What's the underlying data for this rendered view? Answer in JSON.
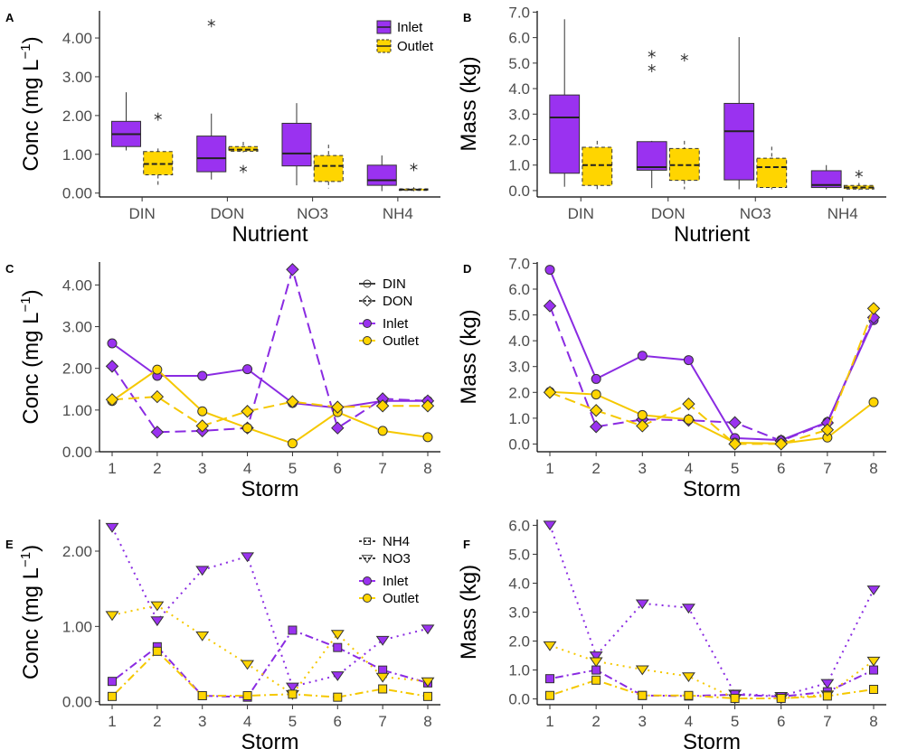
{
  "colors": {
    "inlet": "#9a32f0",
    "outlet": "#ffd500",
    "inlet_line": "#8a2be2",
    "outlet_line": "#f5c800"
  },
  "chart_data": [
    {
      "panel": "A",
      "type": "box",
      "xlabel": "Nutrient",
      "ylabel": "Conc (mg L",
      "ylabel_sup": "−1",
      "ylabel_close": ")",
      "categories": [
        "DIN",
        "DON",
        "NO3",
        "NH4"
      ],
      "yticks": [
        "0.00",
        "1.00",
        "2.00",
        "3.00",
        "4.00"
      ],
      "ylim": [
        -0.1,
        4.7
      ],
      "legend": {
        "position": "top-right",
        "entries": [
          "Inlet",
          "Outlet"
        ]
      },
      "series": [
        {
          "name": "Inlet",
          "boxes": [
            {
              "lo": 1.1,
              "q1": 1.2,
              "med": 1.52,
              "q3": 1.85,
              "hi": 2.6,
              "outliers": []
            },
            {
              "lo": 0.35,
              "q1": 0.55,
              "med": 0.9,
              "q3": 1.47,
              "hi": 2.05,
              "outliers": [
                4.38
              ]
            },
            {
              "lo": 0.2,
              "q1": 0.7,
              "med": 1.02,
              "q3": 1.8,
              "hi": 2.32,
              "outliers": []
            },
            {
              "lo": 0.05,
              "q1": 0.2,
              "med": 0.33,
              "q3": 0.72,
              "hi": 0.97,
              "outliers": []
            }
          ]
        },
        {
          "name": "Outlet",
          "boxes": [
            {
              "lo": 0.2,
              "q1": 0.47,
              "med": 0.75,
              "q3": 1.07,
              "hi": 1.15,
              "outliers": [
                1.97
              ]
            },
            {
              "lo": 1.05,
              "q1": 1.08,
              "med": 1.12,
              "q3": 1.2,
              "hi": 1.32,
              "outliers": [
                0.62
              ]
            },
            {
              "lo": 0.12,
              "q1": 0.3,
              "med": 0.7,
              "q3": 0.97,
              "hi": 1.25,
              "outliers": []
            },
            {
              "lo": 0.05,
              "q1": 0.07,
              "med": 0.09,
              "q3": 0.11,
              "hi": 0.15,
              "outliers": [
                0.67
              ]
            }
          ]
        }
      ]
    },
    {
      "panel": "B",
      "type": "box",
      "xlabel": "Nutrient",
      "ylabel": "Mass (kg)",
      "categories": [
        "DIN",
        "DON",
        "NO3",
        "NH4"
      ],
      "yticks": [
        "0.0",
        "1.0",
        "2.0",
        "3.0",
        "4.0",
        "5.0",
        "6.0",
        "7.0"
      ],
      "ylim": [
        -0.25,
        7.05
      ],
      "series": [
        {
          "name": "Inlet",
          "boxes": [
            {
              "lo": 0.15,
              "q1": 0.68,
              "med": 2.87,
              "q3": 3.75,
              "hi": 6.72,
              "outliers": []
            },
            {
              "lo": 0.1,
              "q1": 0.8,
              "med": 0.92,
              "q3": 1.92,
              "hi": 1.95,
              "outliers": [
                4.8,
                5.35
              ]
            },
            {
              "lo": 0.05,
              "q1": 0.42,
              "med": 2.33,
              "q3": 3.42,
              "hi": 6.02,
              "outliers": []
            },
            {
              "lo": 0.05,
              "q1": 0.12,
              "med": 0.22,
              "q3": 0.78,
              "hi": 1.0,
              "outliers": []
            }
          ]
        },
        {
          "name": "Outlet",
          "boxes": [
            {
              "lo": 0.05,
              "q1": 0.2,
              "med": 1.0,
              "q3": 1.7,
              "hi": 1.95,
              "outliers": []
            },
            {
              "lo": 0.05,
              "q1": 0.4,
              "med": 1.0,
              "q3": 1.65,
              "hi": 1.95,
              "outliers": [
                5.22
              ]
            },
            {
              "lo": 0.05,
              "q1": 0.12,
              "med": 0.92,
              "q3": 1.27,
              "hi": 1.72,
              "outliers": []
            },
            {
              "lo": 0.02,
              "q1": 0.06,
              "med": 0.12,
              "q3": 0.2,
              "hi": 0.3,
              "outliers": [
                0.65
              ]
            }
          ]
        }
      ]
    },
    {
      "panel": "C",
      "type": "line",
      "xlabel": "Storm",
      "ylabel": "Conc (mg L",
      "ylabel_sup": "−1",
      "ylabel_close": ")",
      "x": [
        1,
        2,
        3,
        4,
        5,
        6,
        7,
        8
      ],
      "yticks": [
        "0.00",
        "1.00",
        "2.00",
        "3.00",
        "4.00"
      ],
      "ylim": [
        0,
        4.55
      ],
      "legend": {
        "position": "top-right",
        "shapes": [
          "DIN",
          "DON"
        ],
        "colors": [
          "Inlet",
          "Outlet"
        ]
      },
      "series": [
        {
          "name": "DIN Inlet",
          "color": "inlet",
          "dash": "solid",
          "marker": "circle",
          "values": [
            2.6,
            1.82,
            1.82,
            1.98,
            1.17,
            1.05,
            1.22,
            1.22
          ]
        },
        {
          "name": "DON Inlet",
          "color": "inlet",
          "dash": "dashed",
          "marker": "diamond",
          "values": [
            2.05,
            0.47,
            0.5,
            0.57,
            4.37,
            0.57,
            1.27,
            1.22
          ]
        },
        {
          "name": "DIN Outlet",
          "color": "outlet",
          "dash": "solid",
          "marker": "circle",
          "values": [
            1.22,
            1.97,
            0.97,
            0.57,
            0.2,
            0.95,
            0.5,
            0.35
          ]
        },
        {
          "name": "DON Outlet",
          "color": "outlet",
          "dash": "dashed",
          "marker": "diamond",
          "values": [
            1.25,
            1.32,
            0.62,
            0.97,
            1.2,
            1.07,
            1.1,
            1.1
          ]
        }
      ]
    },
    {
      "panel": "D",
      "type": "line",
      "xlabel": "Storm",
      "ylabel": "Mass (kg)",
      "x": [
        1,
        2,
        3,
        4,
        5,
        6,
        7,
        8
      ],
      "yticks": [
        "0.0",
        "1.0",
        "2.0",
        "3.0",
        "4.0",
        "5.0",
        "6.0",
        "7.0"
      ],
      "ylim": [
        -0.3,
        7.05
      ],
      "series": [
        {
          "name": "DIN Inlet",
          "color": "inlet",
          "dash": "solid",
          "marker": "circle",
          "values": [
            6.75,
            2.52,
            3.42,
            3.25,
            0.23,
            0.15,
            0.85,
            4.8
          ]
        },
        {
          "name": "DON Inlet",
          "color": "inlet",
          "dash": "dashed",
          "marker": "diamond",
          "values": [
            5.35,
            0.67,
            0.95,
            0.92,
            0.83,
            0.12,
            0.82,
            4.9
          ]
        },
        {
          "name": "DIN Outlet",
          "color": "outlet",
          "dash": "solid",
          "marker": "circle",
          "values": [
            2.02,
            1.92,
            1.12,
            0.95,
            0.05,
            0.02,
            0.25,
            1.62
          ]
        },
        {
          "name": "DON Outlet",
          "color": "outlet",
          "dash": "dashed",
          "marker": "diamond",
          "values": [
            2.0,
            1.3,
            0.7,
            1.55,
            0.0,
            0.0,
            0.55,
            5.25
          ]
        }
      ]
    },
    {
      "panel": "E",
      "type": "line",
      "xlabel": "Storm",
      "ylabel": "Conc (mg L",
      "ylabel_sup": "−1",
      "ylabel_close": ")",
      "x": [
        1,
        2,
        3,
        4,
        5,
        6,
        7,
        8
      ],
      "yticks": [
        "0.00",
        "1.00",
        "2.00"
      ],
      "ylim": [
        -0.04,
        2.42
      ],
      "legend": {
        "position": "top-right",
        "shapes": [
          "NH4",
          "NO3"
        ],
        "colors": [
          "Inlet",
          "Outlet"
        ]
      },
      "series": [
        {
          "name": "NO3 Inlet",
          "color": "inlet",
          "dash": "dotted",
          "marker": "triangle",
          "values": [
            2.32,
            1.08,
            1.75,
            1.93,
            0.2,
            0.35,
            0.82,
            0.97
          ]
        },
        {
          "name": "NH4 Inlet",
          "color": "inlet",
          "dash": "dotdash",
          "marker": "square",
          "values": [
            0.27,
            0.73,
            0.08,
            0.06,
            0.95,
            0.72,
            0.42,
            0.25
          ]
        },
        {
          "name": "NO3 Outlet",
          "color": "outlet",
          "dash": "dotted",
          "marker": "triangle",
          "values": [
            1.15,
            1.28,
            0.88,
            0.5,
            0.1,
            0.9,
            0.33,
            0.27
          ]
        },
        {
          "name": "NH4 Outlet",
          "color": "outlet",
          "dash": "dotdash",
          "marker": "square",
          "values": [
            0.07,
            0.67,
            0.08,
            0.08,
            0.1,
            0.06,
            0.17,
            0.07
          ]
        }
      ]
    },
    {
      "panel": "F",
      "type": "line",
      "xlabel": "Storm",
      "ylabel": "Mass (kg)",
      "x": [
        1,
        2,
        3,
        4,
        5,
        6,
        7,
        8
      ],
      "yticks": [
        "0.0",
        "1.0",
        "2.0",
        "3.0",
        "4.0",
        "5.0",
        "6.0"
      ],
      "ylim": [
        -0.2,
        6.2
      ],
      "series": [
        {
          "name": "NO3 Inlet",
          "color": "inlet",
          "dash": "dotted",
          "marker": "triangle",
          "values": [
            6.02,
            1.5,
            3.3,
            3.15,
            0.18,
            0.1,
            0.55,
            3.78
          ]
        },
        {
          "name": "NH4 Inlet",
          "color": "inlet",
          "dash": "dotdash",
          "marker": "square",
          "values": [
            0.7,
            1.0,
            0.12,
            0.1,
            0.15,
            0.08,
            0.25,
            1.0
          ]
        },
        {
          "name": "NO3 Outlet",
          "color": "outlet",
          "dash": "dotted",
          "marker": "triangle",
          "values": [
            1.85,
            1.3,
            1.02,
            0.78,
            0.02,
            0.02,
            0.15,
            1.32
          ]
        },
        {
          "name": "NH4 Outlet",
          "color": "outlet",
          "dash": "dotdash",
          "marker": "square",
          "values": [
            0.12,
            0.65,
            0.12,
            0.12,
            0.02,
            0.02,
            0.1,
            0.33
          ]
        }
      ]
    }
  ]
}
